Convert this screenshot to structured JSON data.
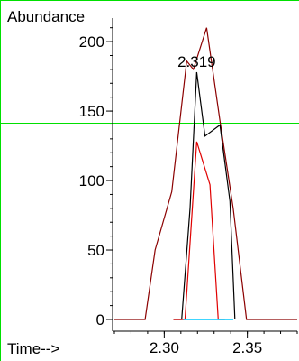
{
  "chart_data": {
    "type": "line",
    "title": "",
    "xlabel": "Time-->",
    "ylabel": "Abundance",
    "xlim": [
      2.27,
      2.38
    ],
    "ylim": [
      0,
      215
    ],
    "x_ticks": [
      2.3,
      2.35
    ],
    "x_tick_labels": [
      "2.30",
      "2.35"
    ],
    "y_ticks": [
      0,
      50,
      100,
      150,
      200
    ],
    "y_tick_labels": [
      "0",
      "50",
      "100",
      "150",
      "200"
    ],
    "x_minor_step": 0.01,
    "y_minor_step": 10,
    "grid": false,
    "legend": "none",
    "annotations": [
      {
        "text": "2.319",
        "x": 2.3195,
        "y": 178
      }
    ],
    "baseline_segment": {
      "x": [
        2.3115,
        2.3415
      ],
      "y": [
        0,
        0
      ],
      "color": "#00c8ff"
    },
    "series": [
      {
        "color": "#8b0000",
        "x": [
          2.27,
          2.2885,
          2.2945,
          2.3045,
          2.3135,
          2.3175,
          2.3255,
          2.3335,
          2.3415,
          2.3495,
          2.38
        ],
        "y": [
          0,
          0,
          50,
          92,
          186,
          180,
          210,
          143,
          80,
          0,
          0
        ]
      },
      {
        "color": "#000000",
        "x": [
          2.3055,
          2.3105,
          2.3155,
          2.3195,
          2.3245,
          2.3335,
          2.3395,
          2.3425
        ],
        "y": [
          0,
          0,
          80,
          178,
          132,
          140,
          85,
          0
        ]
      },
      {
        "color": "#e00000",
        "x": [
          2.3055,
          2.3125,
          2.3195,
          2.3275,
          2.3325,
          2.3365
        ],
        "y": [
          0,
          0,
          128,
          97,
          0,
          0
        ]
      }
    ]
  }
}
